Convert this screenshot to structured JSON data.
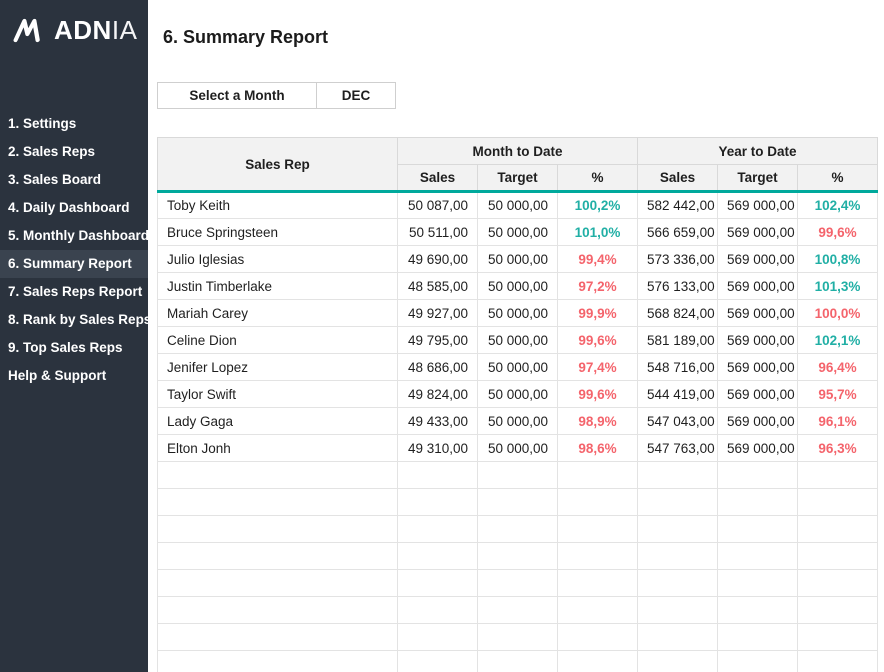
{
  "brand": {
    "name_bold": "ADN",
    "name_light": "IA",
    "logo_icon": "adnia-mark"
  },
  "colors": {
    "sidebar_bg": "#2B333E",
    "sidebar_active_bg": "#3A434F",
    "header_underline_teal": "#00A99C",
    "pct_up_teal": "#21AFA5",
    "pct_down_red": "#F4646C"
  },
  "sidebar": {
    "items": [
      {
        "id": "settings",
        "label": "1. Settings",
        "active": false
      },
      {
        "id": "sales-reps",
        "label": "2. Sales Reps",
        "active": false
      },
      {
        "id": "sales-board",
        "label": "3. Sales Board",
        "active": false
      },
      {
        "id": "daily-dashboard",
        "label": "4. Daily Dashboard",
        "active": false
      },
      {
        "id": "monthly-dashboard",
        "label": "5. Monthly Dashboard",
        "active": false
      },
      {
        "id": "summary-report",
        "label": "6. Summary Report",
        "active": true
      },
      {
        "id": "sales-reps-report",
        "label": "7. Sales Reps Report",
        "active": false
      },
      {
        "id": "rank-by-sales-reps",
        "label": "8. Rank by Sales Reps",
        "active": false
      },
      {
        "id": "top-sales-reps",
        "label": "9. Top Sales Reps",
        "active": false
      },
      {
        "id": "help-support",
        "label": "Help & Support",
        "active": false
      }
    ]
  },
  "header": {
    "title": "6. Summary Report"
  },
  "month_selector": {
    "label": "Select a Month",
    "value": "DEC"
  },
  "table": {
    "first_col_header": "Sales Rep",
    "groups": [
      "Month to Date",
      "Year to Date"
    ],
    "sub_headers": [
      "Sales",
      "Target",
      "%"
    ],
    "empty_row_count": 8,
    "rows": [
      {
        "name": "Toby Keith",
        "mtd": {
          "sales": "50 087,00",
          "target": "50 000,00",
          "pct": "100,2%",
          "trend": "up"
        },
        "ytd": {
          "sales": "582 442,00",
          "target": "569 000,00",
          "pct": "102,4%",
          "trend": "up"
        }
      },
      {
        "name": "Bruce Springsteen",
        "mtd": {
          "sales": "50 511,00",
          "target": "50 000,00",
          "pct": "101,0%",
          "trend": "up"
        },
        "ytd": {
          "sales": "566 659,00",
          "target": "569 000,00",
          "pct": "99,6%",
          "trend": "down"
        }
      },
      {
        "name": "Julio Iglesias",
        "mtd": {
          "sales": "49 690,00",
          "target": "50 000,00",
          "pct": "99,4%",
          "trend": "down"
        },
        "ytd": {
          "sales": "573 336,00",
          "target": "569 000,00",
          "pct": "100,8%",
          "trend": "up"
        }
      },
      {
        "name": "Justin Timberlake",
        "mtd": {
          "sales": "48 585,00",
          "target": "50 000,00",
          "pct": "97,2%",
          "trend": "down"
        },
        "ytd": {
          "sales": "576 133,00",
          "target": "569 000,00",
          "pct": "101,3%",
          "trend": "up"
        }
      },
      {
        "name": "Mariah Carey",
        "mtd": {
          "sales": "49 927,00",
          "target": "50 000,00",
          "pct": "99,9%",
          "trend": "down"
        },
        "ytd": {
          "sales": "568 824,00",
          "target": "569 000,00",
          "pct": "100,0%",
          "trend": "down"
        }
      },
      {
        "name": "Celine Dion",
        "mtd": {
          "sales": "49 795,00",
          "target": "50 000,00",
          "pct": "99,6%",
          "trend": "down"
        },
        "ytd": {
          "sales": "581 189,00",
          "target": "569 000,00",
          "pct": "102,1%",
          "trend": "up"
        }
      },
      {
        "name": "Jenifer Lopez",
        "mtd": {
          "sales": "48 686,00",
          "target": "50 000,00",
          "pct": "97,4%",
          "trend": "down"
        },
        "ytd": {
          "sales": "548 716,00",
          "target": "569 000,00",
          "pct": "96,4%",
          "trend": "down"
        }
      },
      {
        "name": "Taylor Swift",
        "mtd": {
          "sales": "49 824,00",
          "target": "50 000,00",
          "pct": "99,6%",
          "trend": "down"
        },
        "ytd": {
          "sales": "544 419,00",
          "target": "569 000,00",
          "pct": "95,7%",
          "trend": "down"
        }
      },
      {
        "name": "Lady Gaga",
        "mtd": {
          "sales": "49 433,00",
          "target": "50 000,00",
          "pct": "98,9%",
          "trend": "down"
        },
        "ytd": {
          "sales": "547 043,00",
          "target": "569 000,00",
          "pct": "96,1%",
          "trend": "down"
        }
      },
      {
        "name": "Elton Jonh",
        "mtd": {
          "sales": "49 310,00",
          "target": "50 000,00",
          "pct": "98,6%",
          "trend": "down"
        },
        "ytd": {
          "sales": "547 763,00",
          "target": "569 000,00",
          "pct": "96,3%",
          "trend": "down"
        }
      }
    ]
  }
}
